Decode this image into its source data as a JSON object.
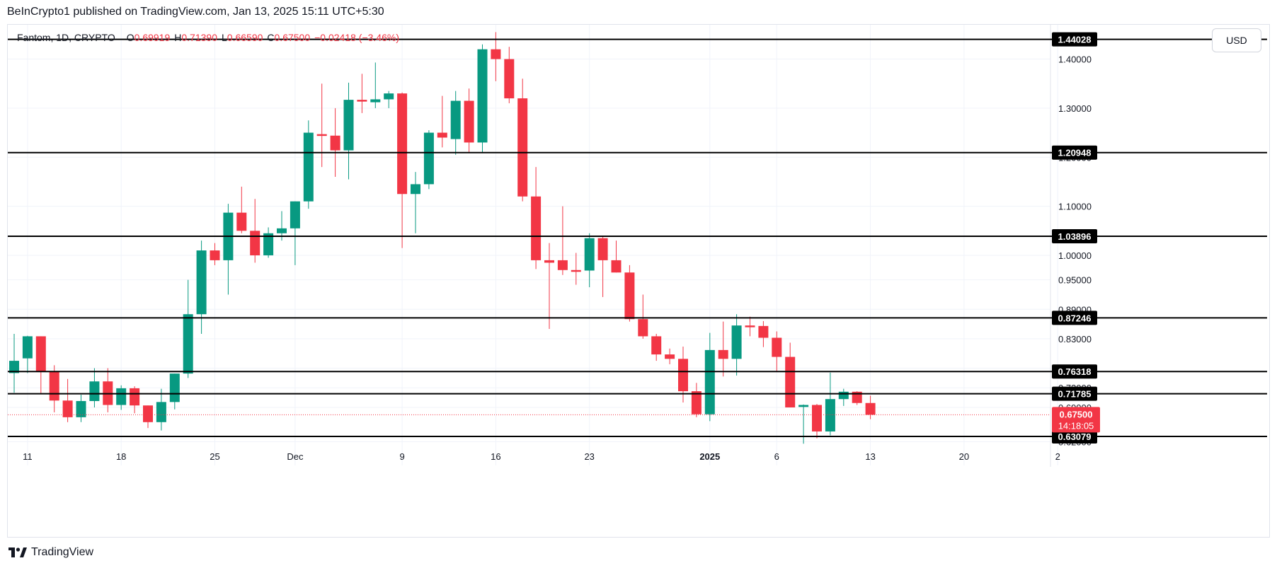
{
  "header": {
    "published_by": "BeInCrypto1 published on TradingView.com, Jan 13, 2025 15:11 UTC+5:30"
  },
  "legend": {
    "symbol": "Fantom, 1D, CRYPTO",
    "o_label": "O",
    "o_value": "0.69919",
    "h_label": "H",
    "h_value": "0.71390",
    "l_label": "L",
    "l_value": "0.66590",
    "c_label": "C",
    "c_value": "0.67500",
    "change": "−0.02418 (−3.46%)"
  },
  "currency": "USD",
  "footer": {
    "brand": "TradingView"
  },
  "colors": {
    "up": "#089981",
    "down": "#f23645",
    "line": "#000000",
    "grid": "#f0f3fa",
    "price_tag": "#f23645"
  },
  "chart_data": {
    "type": "candlestick",
    "title": "Fantom, 1D, CRYPTO",
    "ylabel": "USD",
    "ylim": [
      0.615,
      1.47
    ],
    "y_ticks": [
      {
        "v": 1.4,
        "label": "1.40000"
      },
      {
        "v": 1.3,
        "label": "1.30000"
      },
      {
        "v": 1.2,
        "label": "1.20000"
      },
      {
        "v": 1.1,
        "label": "1.10000"
      },
      {
        "v": 1.0,
        "label": "1.00000"
      },
      {
        "v": 0.95,
        "label": "0.95000"
      },
      {
        "v": 0.89,
        "label": "0.89000"
      },
      {
        "v": 0.83,
        "label": "0.83000"
      },
      {
        "v": 0.77,
        "label": "0.77000"
      },
      {
        "v": 0.73,
        "label": "0.73000"
      },
      {
        "v": 0.69,
        "label": "0.69000"
      },
      {
        "v": 0.62,
        "label": "0.62000"
      }
    ],
    "x_ticks": [
      {
        "i": 1,
        "label": "11"
      },
      {
        "i": 8,
        "label": "18"
      },
      {
        "i": 15,
        "label": "25"
      },
      {
        "i": 21,
        "label": "Dec"
      },
      {
        "i": 29,
        "label": "9"
      },
      {
        "i": 36,
        "label": "16"
      },
      {
        "i": 43,
        "label": "23"
      },
      {
        "i": 52,
        "label": "2025"
      },
      {
        "i": 57,
        "label": "6"
      },
      {
        "i": 64,
        "label": "13"
      },
      {
        "i": 71,
        "label": "20"
      },
      {
        "i": 78,
        "label": "2"
      }
    ],
    "levels": [
      {
        "value": 1.44028,
        "label": "1.44028"
      },
      {
        "value": 1.20948,
        "label": "1.20948"
      },
      {
        "value": 1.03896,
        "label": "1.03896"
      },
      {
        "value": 0.87246,
        "label": "0.87246"
      },
      {
        "value": 0.76318,
        "label": "0.76318"
      },
      {
        "value": 0.71785,
        "label": "0.71785"
      },
      {
        "value": 0.63079,
        "label": "0.63079"
      }
    ],
    "current_price": {
      "value": 0.675,
      "label": "0.67500",
      "countdown": "14:18:05"
    },
    "candles": [
      {
        "o": 0.76,
        "h": 0.84,
        "l": 0.72,
        "c": 0.785
      },
      {
        "o": 0.79,
        "h": 0.836,
        "l": 0.76,
        "c": 0.835
      },
      {
        "o": 0.835,
        "h": 0.835,
        "l": 0.718,
        "c": 0.764
      },
      {
        "o": 0.764,
        "h": 0.776,
        "l": 0.68,
        "c": 0.704
      },
      {
        "o": 0.704,
        "h": 0.748,
        "l": 0.66,
        "c": 0.67
      },
      {
        "o": 0.67,
        "h": 0.716,
        "l": 0.66,
        "c": 0.703
      },
      {
        "o": 0.703,
        "h": 0.77,
        "l": 0.69,
        "c": 0.743
      },
      {
        "o": 0.743,
        "h": 0.77,
        "l": 0.68,
        "c": 0.695
      },
      {
        "o": 0.695,
        "h": 0.735,
        "l": 0.685,
        "c": 0.729
      },
      {
        "o": 0.729,
        "h": 0.733,
        "l": 0.678,
        "c": 0.694
      },
      {
        "o": 0.694,
        "h": 0.694,
        "l": 0.648,
        "c": 0.66
      },
      {
        "o": 0.66,
        "h": 0.728,
        "l": 0.643,
        "c": 0.701
      },
      {
        "o": 0.701,
        "h": 0.759,
        "l": 0.686,
        "c": 0.759
      },
      {
        "o": 0.759,
        "h": 0.95,
        "l": 0.75,
        "c": 0.88
      },
      {
        "o": 0.88,
        "h": 1.03,
        "l": 0.84,
        "c": 1.01
      },
      {
        "o": 1.01,
        "h": 1.025,
        "l": 0.98,
        "c": 0.99
      },
      {
        "o": 0.99,
        "h": 1.105,
        "l": 0.92,
        "c": 1.087
      },
      {
        "o": 1.087,
        "h": 1.14,
        "l": 1.045,
        "c": 1.05
      },
      {
        "o": 1.05,
        "h": 1.115,
        "l": 0.985,
        "c": 1.0
      },
      {
        "o": 1.0,
        "h": 1.057,
        "l": 0.995,
        "c": 1.045
      },
      {
        "o": 1.045,
        "h": 1.09,
        "l": 1.03,
        "c": 1.055
      },
      {
        "o": 1.055,
        "h": 1.11,
        "l": 0.98,
        "c": 1.11
      },
      {
        "o": 1.11,
        "h": 1.275,
        "l": 1.095,
        "c": 1.25
      },
      {
        "o": 1.247,
        "h": 1.35,
        "l": 1.18,
        "c": 1.244
      },
      {
        "o": 1.244,
        "h": 1.3,
        "l": 1.16,
        "c": 1.214
      },
      {
        "o": 1.214,
        "h": 1.352,
        "l": 1.155,
        "c": 1.317
      },
      {
        "o": 1.317,
        "h": 1.37,
        "l": 1.29,
        "c": 1.314
      },
      {
        "o": 1.312,
        "h": 1.393,
        "l": 1.3,
        "c": 1.318
      },
      {
        "o": 1.318,
        "h": 1.335,
        "l": 1.3,
        "c": 1.33
      },
      {
        "o": 1.33,
        "h": 1.332,
        "l": 1.015,
        "c": 1.125
      },
      {
        "o": 1.125,
        "h": 1.17,
        "l": 1.045,
        "c": 1.145
      },
      {
        "o": 1.145,
        "h": 1.255,
        "l": 1.135,
        "c": 1.25
      },
      {
        "o": 1.25,
        "h": 1.325,
        "l": 1.22,
        "c": 1.24
      },
      {
        "o": 1.237,
        "h": 1.335,
        "l": 1.205,
        "c": 1.315
      },
      {
        "o": 1.315,
        "h": 1.34,
        "l": 1.21,
        "c": 1.23
      },
      {
        "o": 1.23,
        "h": 1.43,
        "l": 1.21,
        "c": 1.42
      },
      {
        "o": 1.42,
        "h": 1.455,
        "l": 1.355,
        "c": 1.4
      },
      {
        "o": 1.4,
        "h": 1.425,
        "l": 1.31,
        "c": 1.32
      },
      {
        "o": 1.32,
        "h": 1.36,
        "l": 1.11,
        "c": 1.12
      },
      {
        "o": 1.12,
        "h": 1.18,
        "l": 0.972,
        "c": 0.99
      },
      {
        "o": 0.99,
        "h": 1.025,
        "l": 0.85,
        "c": 0.985
      },
      {
        "o": 0.99,
        "h": 1.1,
        "l": 0.96,
        "c": 0.97
      },
      {
        "o": 0.97,
        "h": 1.005,
        "l": 0.94,
        "c": 0.969
      },
      {
        "o": 0.969,
        "h": 1.045,
        "l": 0.935,
        "c": 1.035
      },
      {
        "o": 1.035,
        "h": 1.04,
        "l": 0.915,
        "c": 0.99
      },
      {
        "o": 0.99,
        "h": 1.03,
        "l": 0.965,
        "c": 0.965
      },
      {
        "o": 0.965,
        "h": 0.98,
        "l": 0.865,
        "c": 0.87
      },
      {
        "o": 0.87,
        "h": 0.92,
        "l": 0.83,
        "c": 0.835
      },
      {
        "o": 0.835,
        "h": 0.84,
        "l": 0.785,
        "c": 0.798
      },
      {
        "o": 0.798,
        "h": 0.81,
        "l": 0.778,
        "c": 0.789
      },
      {
        "o": 0.789,
        "h": 0.814,
        "l": 0.7,
        "c": 0.723
      },
      {
        "o": 0.723,
        "h": 0.74,
        "l": 0.67,
        "c": 0.676
      },
      {
        "o": 0.676,
        "h": 0.842,
        "l": 0.662,
        "c": 0.807
      },
      {
        "o": 0.807,
        "h": 0.865,
        "l": 0.753,
        "c": 0.789
      },
      {
        "o": 0.789,
        "h": 0.88,
        "l": 0.755,
        "c": 0.857
      },
      {
        "o": 0.857,
        "h": 0.875,
        "l": 0.835,
        "c": 0.855
      },
      {
        "o": 0.856,
        "h": 0.866,
        "l": 0.813,
        "c": 0.832
      },
      {
        "o": 0.832,
        "h": 0.845,
        "l": 0.762,
        "c": 0.793
      },
      {
        "o": 0.793,
        "h": 0.822,
        "l": 0.69,
        "c": 0.69
      },
      {
        "o": 0.691,
        "h": 0.696,
        "l": 0.616,
        "c": 0.695
      },
      {
        "o": 0.695,
        "h": 0.697,
        "l": 0.627,
        "c": 0.641
      },
      {
        "o": 0.641,
        "h": 0.761,
        "l": 0.633,
        "c": 0.707
      },
      {
        "o": 0.707,
        "h": 0.728,
        "l": 0.693,
        "c": 0.722
      },
      {
        "o": 0.722,
        "h": 0.723,
        "l": 0.695,
        "c": 0.699
      },
      {
        "o": 0.699,
        "h": 0.714,
        "l": 0.666,
        "c": 0.675
      }
    ]
  }
}
